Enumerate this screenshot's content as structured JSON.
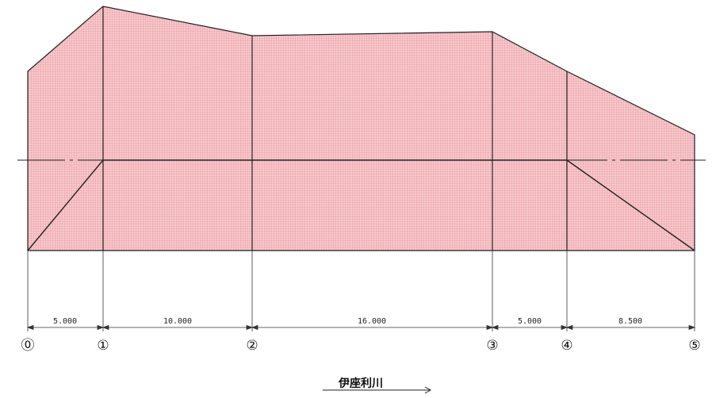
{
  "diagram": {
    "stations": [
      "⓪",
      "①",
      "②",
      "③",
      "④",
      "⑤"
    ],
    "spans": [
      "5.000",
      "10.000",
      "16.000",
      "5.000",
      "8.500"
    ],
    "river_label": "伊座利川",
    "colors": {
      "fill": "#f6c3c8",
      "hatch": "#e48a93",
      "line": "#222222"
    }
  }
}
